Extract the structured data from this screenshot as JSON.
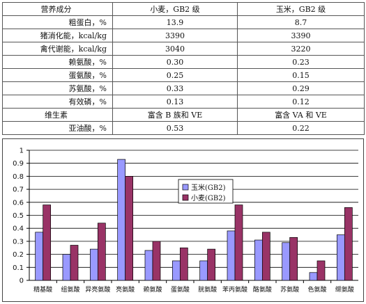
{
  "table": {
    "header": {
      "name": "营养成分",
      "wheat": "小麦，GB2 级",
      "corn": "玉米，GB2 级"
    },
    "rows": [
      {
        "name": "粗蛋白，%",
        "wheat": "13.9",
        "corn": "8.7"
      },
      {
        "name": "猪消化能，kcal/kg",
        "wheat": "3390",
        "corn": "3390"
      },
      {
        "name": "禽代谢能，kcal/kg",
        "wheat": "3040",
        "corn": "3220"
      },
      {
        "name": "赖氨酸，%",
        "wheat": "0.30",
        "corn": "0.23"
      },
      {
        "name": "蛋氨酸，%",
        "wheat": "0.25",
        "corn": "0.15"
      },
      {
        "name": "苏氨酸，%",
        "wheat": "0.33",
        "corn": "0.29"
      },
      {
        "name": "有效磷，%",
        "wheat": "0.13",
        "corn": "0.12"
      },
      {
        "name": "维生素",
        "wheat": "富含 B 族和 VE",
        "corn": "富含 VA 和 VE"
      },
      {
        "name": "亚油酸，%",
        "wheat": "0.53",
        "corn": "0.22"
      }
    ]
  },
  "chart_data": {
    "type": "bar",
    "categories": [
      "精基酸",
      "组氨酸",
      "异亮氨酸",
      "亮氨酸",
      "赖氨酸",
      "蛋氨酸",
      "胱氨酸",
      "苯丙氨酸",
      "酪氨酸",
      "苏氨酸",
      "色氨酸",
      "缬氨酸"
    ],
    "series": [
      {
        "name": "玉米(GB2)",
        "color": "#9999ff",
        "values": [
          0.37,
          0.2,
          0.24,
          0.93,
          0.23,
          0.15,
          0.15,
          0.38,
          0.31,
          0.29,
          0.06,
          0.35
        ]
      },
      {
        "name": "小麦(GB2)",
        "color": "#993366",
        "values": [
          0.58,
          0.27,
          0.44,
          0.8,
          0.3,
          0.25,
          0.24,
          0.58,
          0.37,
          0.33,
          0.15,
          0.56
        ]
      }
    ],
    "ylim": [
      0,
      1
    ],
    "yticks": [
      "0",
      "0.1",
      "0.2",
      "0.3",
      "0.4",
      "0.5",
      "0.6",
      "0.7",
      "0.8",
      "0.9",
      "1"
    ],
    "grid": true,
    "legend_position": "center"
  }
}
